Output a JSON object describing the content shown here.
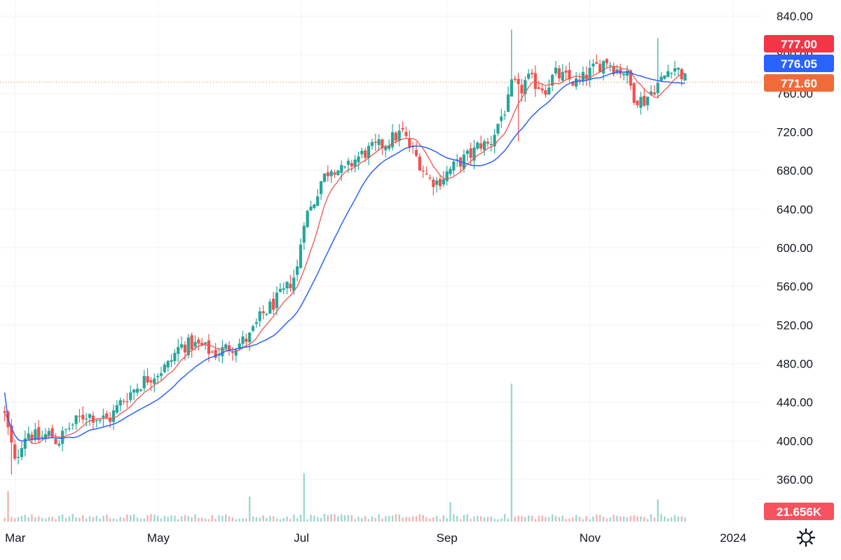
{
  "colors": {
    "up": "#26a69a",
    "down": "#ef5350",
    "ma_fast": "#ef5350",
    "ma_slow": "#2962ff",
    "grid": "#f0f3fa",
    "price_line": "#ef6c3a",
    "badge_high": "#f23645",
    "badge_ma": "#2962ff",
    "badge_last": "#ef6c3a",
    "badge_volume": "#f7525f"
  },
  "axis": {
    "y_ticks": [
      "840.00",
      "800.00",
      "760.00",
      "720.00",
      "680.00",
      "640.00",
      "600.00",
      "560.00",
      "520.00",
      "480.00",
      "440.00",
      "400.00",
      "360.00"
    ],
    "x_ticks": [
      "Mar",
      "May",
      "Jul",
      "Sep",
      "Nov",
      "2024"
    ]
  },
  "badges": {
    "high": "777.00",
    "ma": "776.05",
    "last": "771.60",
    "volume": "21.656K"
  },
  "icons": {
    "settings": "gear-icon"
  },
  "chart_data": {
    "type": "candlestick",
    "y_range": [
      340,
      840
    ],
    "x_ticks": [
      "Mar",
      "May",
      "Jul",
      "Sep",
      "Nov",
      "2024"
    ],
    "grid": true,
    "x_domain_days": [
      55,
      380
    ],
    "x_tick_days": [
      60,
      121,
      182,
      244,
      305,
      366
    ],
    "series": [
      {
        "name": "",
        "type": "moving_average_fast",
        "color": "#ef5350"
      },
      {
        "name": "",
        "type": "moving_average_slow",
        "color": "#2962ff"
      }
    ],
    "price_path": [
      [
        55,
        432
      ],
      [
        58,
        400
      ],
      [
        60,
        375
      ],
      [
        62,
        395
      ],
      [
        65,
        410
      ],
      [
        70,
        402
      ],
      [
        75,
        408
      ],
      [
        78,
        398
      ],
      [
        82,
        412
      ],
      [
        86,
        420
      ],
      [
        90,
        428
      ],
      [
        95,
        424
      ],
      [
        100,
        422
      ],
      [
        105,
        440
      ],
      [
        110,
        452
      ],
      [
        115,
        463
      ],
      [
        120,
        470
      ],
      [
        125,
        478
      ],
      [
        130,
        498
      ],
      [
        135,
        500
      ],
      [
        140,
        497
      ],
      [
        145,
        490
      ],
      [
        150,
        496
      ],
      [
        155,
        500
      ],
      [
        160,
        508
      ],
      [
        165,
        530
      ],
      [
        170,
        542
      ],
      [
        175,
        555
      ],
      [
        180,
        575
      ],
      [
        183,
        630
      ],
      [
        187,
        645
      ],
      [
        190,
        668
      ],
      [
        195,
        685
      ],
      [
        200,
        678
      ],
      [
        205,
        692
      ],
      [
        210,
        700
      ],
      [
        215,
        705
      ],
      [
        220,
        712
      ],
      [
        225,
        720
      ],
      [
        228,
        705
      ],
      [
        232,
        690
      ],
      [
        236,
        672
      ],
      [
        240,
        668
      ],
      [
        245,
        680
      ],
      [
        250,
        690
      ],
      [
        255,
        698
      ],
      [
        258,
        708
      ],
      [
        262,
        706
      ],
      [
        266,
        730
      ],
      [
        270,
        750
      ],
      [
        272,
        772
      ],
      [
        275,
        760
      ],
      [
        278,
        775
      ],
      [
        282,
        770
      ],
      [
        286,
        765
      ],
      [
        290,
        780
      ],
      [
        295,
        775
      ],
      [
        300,
        770
      ],
      [
        304,
        780
      ],
      [
        308,
        788
      ],
      [
        312,
        795
      ],
      [
        316,
        785
      ],
      [
        320,
        783
      ],
      [
        324,
        756
      ],
      [
        328,
        752
      ],
      [
        332,
        765
      ],
      [
        336,
        775
      ],
      [
        340,
        790
      ],
      [
        344,
        780
      ],
      [
        346,
        771.6
      ]
    ],
    "ma_fast_last": 777.0,
    "ma_slow_last": 776.05,
    "last_price": 771.6,
    "volume_last": "21.656K",
    "volume_spikes": [
      {
        "day": 57,
        "rel": 0.22
      },
      {
        "day": 160,
        "rel": 0.18
      },
      {
        "day": 183,
        "rel": 0.35
      },
      {
        "day": 246,
        "rel": 0.14
      },
      {
        "day": 272,
        "rel": 1.0
      },
      {
        "day": 334,
        "rel": 0.16
      }
    ]
  }
}
